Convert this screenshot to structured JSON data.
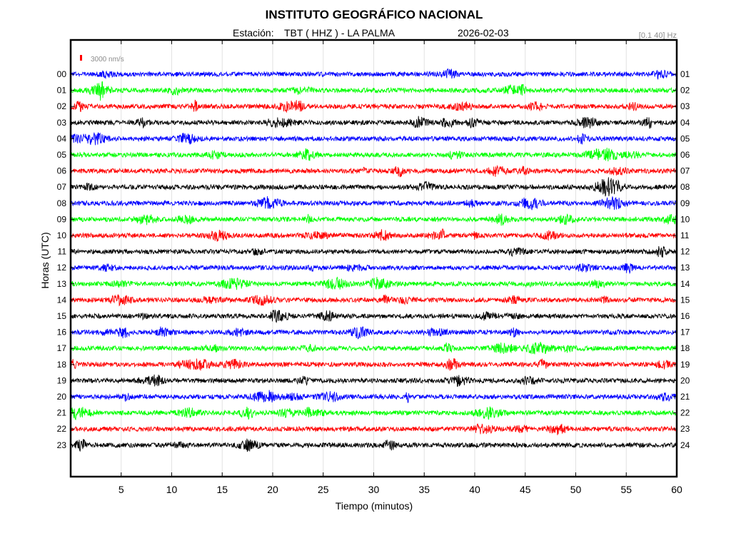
{
  "header": {
    "title": "INSTITUTO GEOGRÁFICO NACIONAL",
    "station_label": "Estación:",
    "station": "TBT ( HHZ ) - LA PALMA",
    "date": "2026-02-03",
    "filter": "[0.1 40] Hz"
  },
  "scale_label": "3000 nm/s",
  "chart_data": {
    "type": "line",
    "title": "INSTITUTO GEOGRÁFICO NACIONAL",
    "xlabel": "Tiempo (minutos)",
    "ylabel": "Horas (UTC)",
    "xlim": [
      0,
      60
    ],
    "x_ticks": [
      "5",
      "10",
      "15",
      "20",
      "25",
      "30",
      "35",
      "40",
      "45",
      "50",
      "55",
      "60"
    ],
    "grid": "vertical",
    "left_labels": [
      "00",
      "01",
      "02",
      "03",
      "04",
      "05",
      "06",
      "07",
      "08",
      "09",
      "10",
      "11",
      "12",
      "13",
      "14",
      "15",
      "16",
      "17",
      "18",
      "19",
      "20",
      "21",
      "22",
      "23"
    ],
    "right_labels": [
      "01",
      "02",
      "03",
      "04",
      "05",
      "06",
      "07",
      "08",
      "09",
      "10",
      "11",
      "12",
      "13",
      "14",
      "15",
      "16",
      "17",
      "18",
      "19",
      "20",
      "21",
      "22",
      "23",
      "24"
    ],
    "trace_colors": [
      "#0000ff",
      "#00ff00",
      "#ff0000",
      "#000000"
    ],
    "scale_bar_color": "#ff0000"
  }
}
